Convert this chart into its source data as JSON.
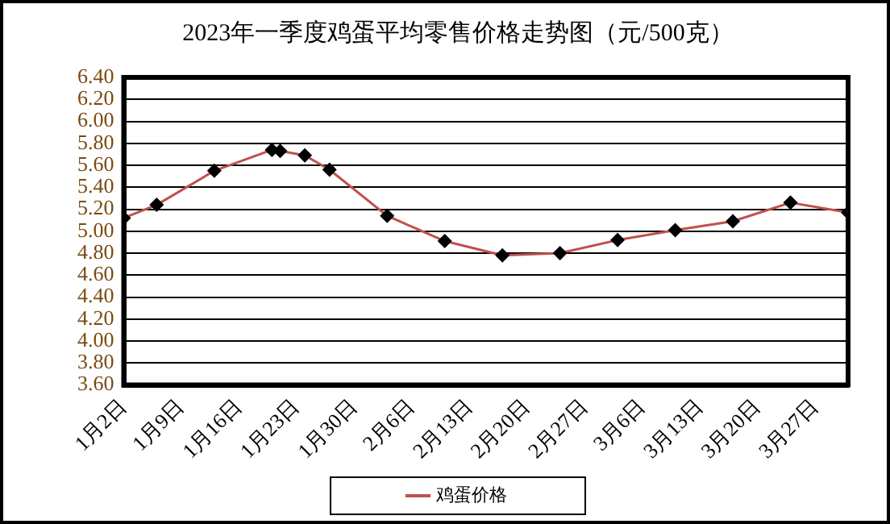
{
  "chart_data": {
    "type": "line",
    "title": "2023年一季度鸡蛋平均零售价格走势图（元/500克）",
    "x": [
      "2023-01-02",
      "2023-01-06",
      "2023-01-13",
      "2023-01-20",
      "2023-01-21",
      "2023-01-24",
      "2023-01-27",
      "2023-02-03",
      "2023-02-10",
      "2023-02-17",
      "2023-02-24",
      "2023-03-03",
      "2023-03-10",
      "2023-03-17",
      "2023-03-24",
      "2023-03-31"
    ],
    "series": [
      {
        "name": "鸡蛋价格",
        "color": "#c0504d",
        "values": [
          5.12,
          5.24,
          5.55,
          5.74,
          5.73,
          5.69,
          5.56,
          5.14,
          4.91,
          4.78,
          4.8,
          4.92,
          5.01,
          5.09,
          5.26,
          5.17
        ]
      }
    ],
    "xlim": [
      "2023-01-02",
      "2023-03-31"
    ],
    "xticks": [
      {
        "value": "2023-01-02",
        "label": "1月2日"
      },
      {
        "value": "2023-01-09",
        "label": "1月9日"
      },
      {
        "value": "2023-01-16",
        "label": "1月16日"
      },
      {
        "value": "2023-01-23",
        "label": "1月23日"
      },
      {
        "value": "2023-01-30",
        "label": "1月30日"
      },
      {
        "value": "2023-02-06",
        "label": "2月6日"
      },
      {
        "value": "2023-02-13",
        "label": "2月13日"
      },
      {
        "value": "2023-02-20",
        "label": "2月20日"
      },
      {
        "value": "2023-02-27",
        "label": "2月27日"
      },
      {
        "value": "2023-03-06",
        "label": "3月6日"
      },
      {
        "value": "2023-03-13",
        "label": "3月13日"
      },
      {
        "value": "2023-03-20",
        "label": "3月20日"
      },
      {
        "value": "2023-03-27",
        "label": "3月27日"
      }
    ],
    "ylim": [
      3.6,
      6.4
    ],
    "yticks": [
      {
        "value": 3.6,
        "label": "3.60"
      },
      {
        "value": 3.8,
        "label": "3.80"
      },
      {
        "value": 4.0,
        "label": "4.00"
      },
      {
        "value": 4.2,
        "label": "4.20"
      },
      {
        "value": 4.4,
        "label": "4.40"
      },
      {
        "value": 4.6,
        "label": "4.60"
      },
      {
        "value": 4.8,
        "label": "4.80"
      },
      {
        "value": 5.0,
        "label": "5.00"
      },
      {
        "value": 5.2,
        "label": "5.20"
      },
      {
        "value": 5.4,
        "label": "5.40"
      },
      {
        "value": 5.6,
        "label": "5.60"
      },
      {
        "value": 5.8,
        "label": "5.80"
      },
      {
        "value": 6.0,
        "label": "6.00"
      },
      {
        "value": 6.2,
        "label": "6.20"
      },
      {
        "value": 6.4,
        "label": "6.40"
      }
    ],
    "grid": "y",
    "legend": "bottom",
    "marker": "diamond",
    "line_style": "solid"
  }
}
